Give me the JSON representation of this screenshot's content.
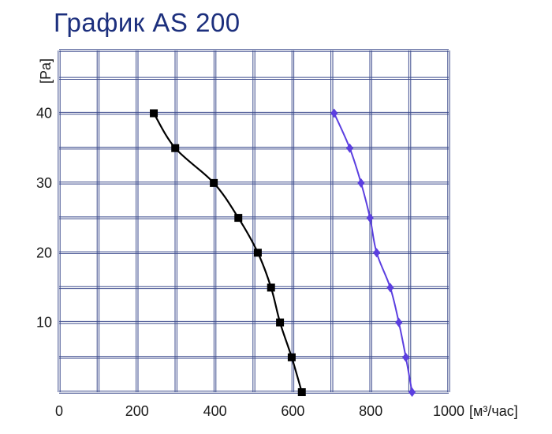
{
  "chart_data": {
    "type": "line",
    "title": "График AS 200",
    "xlabel": "[м³/час]",
    "ylabel": "[Pa]",
    "xlim": [
      0,
      1000
    ],
    "ylim": [
      0,
      49
    ],
    "x_ticks": [
      "0",
      "200",
      "400",
      "600",
      "800",
      "1000"
    ],
    "y_ticks": [
      "10",
      "20",
      "30",
      "40"
    ],
    "grid": true,
    "colors": {
      "title": "#1c2f7d",
      "grid": "#3b4a8c",
      "series_1": "#000000",
      "series_2": "#5b3fe0"
    },
    "series": [
      {
        "marker": "square",
        "points": [
          {
            "x": 243,
            "y": 40
          },
          {
            "x": 298,
            "y": 35
          },
          {
            "x": 397,
            "y": 30
          },
          {
            "x": 460,
            "y": 25
          },
          {
            "x": 510,
            "y": 20
          },
          {
            "x": 544,
            "y": 15
          },
          {
            "x": 567,
            "y": 10
          },
          {
            "x": 597,
            "y": 5
          },
          {
            "x": 623,
            "y": 0
          }
        ]
      },
      {
        "marker": "diamond",
        "points": [
          {
            "x": 706,
            "y": 40
          },
          {
            "x": 746,
            "y": 35
          },
          {
            "x": 775,
            "y": 30
          },
          {
            "x": 798,
            "y": 25
          },
          {
            "x": 815,
            "y": 20
          },
          {
            "x": 850,
            "y": 15
          },
          {
            "x": 872,
            "y": 10
          },
          {
            "x": 890,
            "y": 5
          },
          {
            "x": 906,
            "y": 0
          }
        ]
      }
    ]
  }
}
